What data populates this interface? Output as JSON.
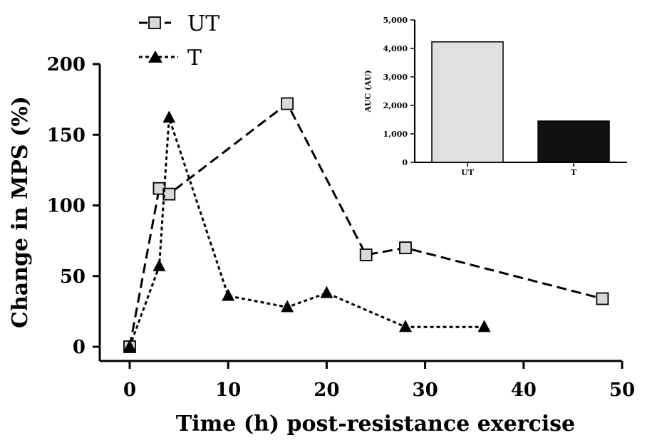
{
  "chart_data": [
    {
      "type": "line",
      "title": "",
      "xlabel": "Time (h) post-resistance exercise",
      "ylabel": "Change in MPS (%)",
      "xlim": [
        0,
        50
      ],
      "ylim": [
        0,
        200
      ],
      "xticks": [
        "0",
        "10",
        "20",
        "30",
        "40",
        "50"
      ],
      "yticks": [
        "0",
        "50",
        "100",
        "150",
        "200"
      ],
      "legend_position": "top-left",
      "grid": false,
      "series": [
        {
          "name": "UT",
          "marker": "square",
          "line": "dashed",
          "color": "#d9d9d9",
          "x": [
            0,
            3,
            4,
            16,
            24,
            28,
            48
          ],
          "y": [
            0,
            112,
            108,
            172,
            65,
            70,
            34
          ]
        },
        {
          "name": "T",
          "marker": "triangle",
          "line": "dotted",
          "color": "#000000",
          "x": [
            0,
            3,
            4,
            10,
            16,
            20,
            28,
            36
          ],
          "y": [
            0,
            57,
            162,
            36,
            28,
            38,
            14,
            14
          ]
        }
      ]
    },
    {
      "type": "bar",
      "title": "",
      "xlabel": "",
      "ylabel": "AUC (AU)",
      "ylim": [
        0,
        5000
      ],
      "yticks": [
        "0",
        "1,000",
        "2,000",
        "3,000",
        "4,000",
        "5,000"
      ],
      "categories": [
        "UT",
        "T"
      ],
      "values": [
        4230,
        1450
      ],
      "colors": [
        "#e0e0e0",
        "#111111"
      ]
    }
  ]
}
